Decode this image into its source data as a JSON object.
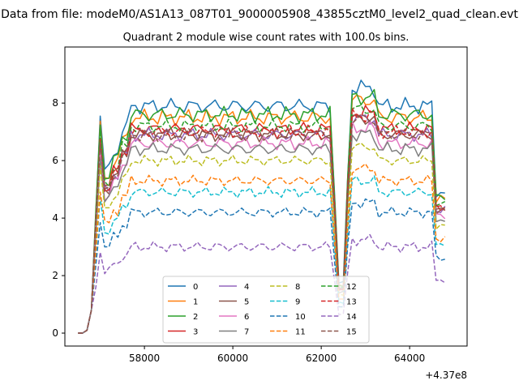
{
  "figure": {
    "suptitle": "Data from file: modeM0/AS1A13_087T01_9000005908_43855cztM0_level2_quad_clean.evt"
  },
  "chart_data": {
    "type": "line",
    "title": "Quadrant 2 module wise count rates with 100.0s bins.",
    "xlabel": "",
    "ylabel": "",
    "x_offset_label": "+4.37e8",
    "xlim": [
      56200,
      65300
    ],
    "ylim": [
      -0.45,
      9.95
    ],
    "x_ticks": [
      58000,
      60000,
      62000,
      64000
    ],
    "x_tick_labels": [
      "58000",
      "60000",
      "62000",
      "64000"
    ],
    "y_ticks": [
      0,
      2,
      4,
      6,
      8
    ],
    "y_tick_labels": [
      "0",
      "2",
      "4",
      "6",
      "8"
    ],
    "grid": false,
    "legend_placement": "lower center",
    "legend_columns": 4,
    "x_range": [
      56500,
      64800
    ],
    "x_step": 100,
    "series": [
      {
        "name": "0",
        "color": "#1f77b4",
        "dash": "solid",
        "level": 7.9,
        "amp": 0.3
      },
      {
        "name": "1",
        "color": "#ff7f0e",
        "dash": "solid",
        "level": 7.5,
        "amp": 0.3
      },
      {
        "name": "2",
        "color": "#2ca02c",
        "dash": "solid",
        "level": 7.6,
        "amp": 0.3
      },
      {
        "name": "3",
        "color": "#d62728",
        "dash": "solid",
        "level": 7.1,
        "amp": 0.25
      },
      {
        "name": "4",
        "color": "#9467bd",
        "dash": "solid",
        "level": 6.9,
        "amp": 0.25
      },
      {
        "name": "5",
        "color": "#8c564b",
        "dash": "solid",
        "level": 6.9,
        "amp": 0.25
      },
      {
        "name": "6",
        "color": "#e377c2",
        "dash": "solid",
        "level": 6.6,
        "amp": 0.25
      },
      {
        "name": "7",
        "color": "#7f7f7f",
        "dash": "solid",
        "level": 6.4,
        "amp": 0.25
      },
      {
        "name": "8",
        "color": "#bcbd22",
        "dash": "dashed",
        "level": 6.0,
        "amp": 0.2
      },
      {
        "name": "9",
        "color": "#17becf",
        "dash": "dashed",
        "level": 4.9,
        "amp": 0.2
      },
      {
        "name": "10",
        "color": "#1f77b4",
        "dash": "dashed",
        "level": 4.2,
        "amp": 0.2
      },
      {
        "name": "11",
        "color": "#ff7f0e",
        "dash": "dashed",
        "level": 5.3,
        "amp": 0.2
      },
      {
        "name": "12",
        "color": "#2ca02c",
        "dash": "dashed",
        "level": 7.2,
        "amp": 0.25
      },
      {
        "name": "13",
        "color": "#d62728",
        "dash": "dashed",
        "level": 7.0,
        "amp": 0.25
      },
      {
        "name": "14",
        "color": "#9467bd",
        "dash": "dashed",
        "level": 3.0,
        "amp": 0.2
      },
      {
        "name": "15",
        "color": "#8c564b",
        "dash": "dashed",
        "level": 6.9,
        "amp": 0.25
      }
    ]
  }
}
